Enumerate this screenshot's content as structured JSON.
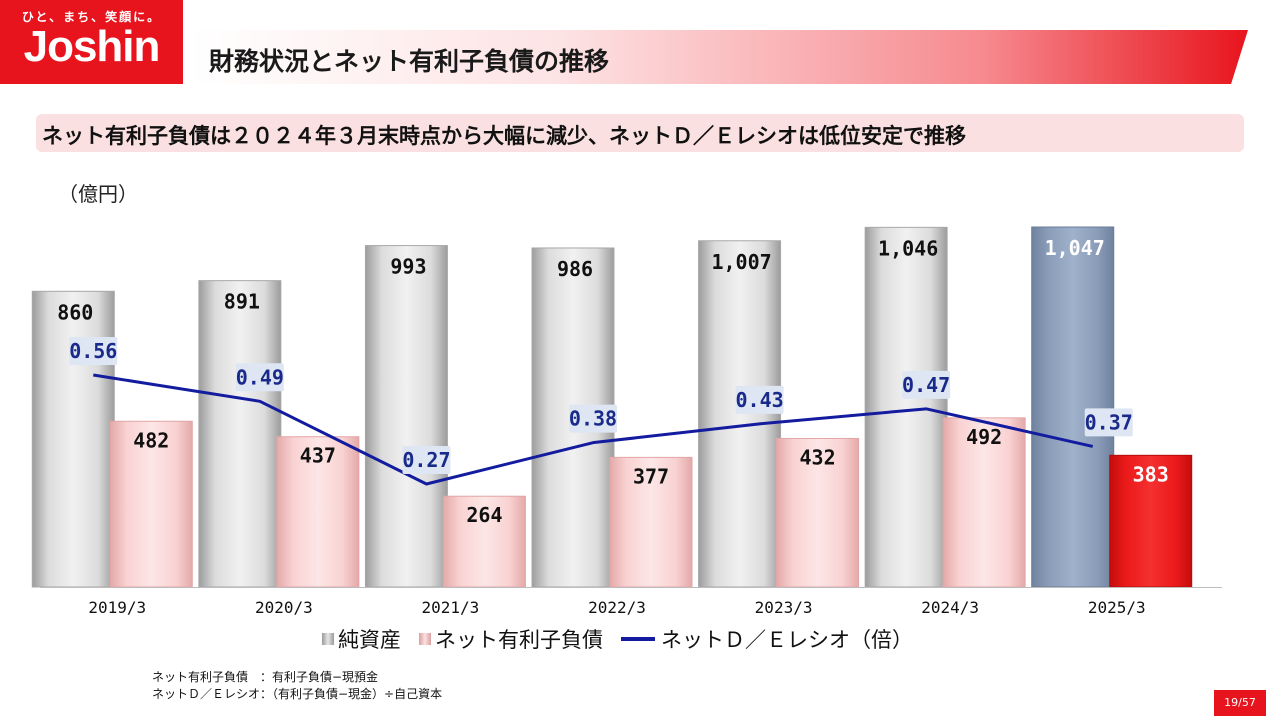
{
  "header": {
    "logo_tagline": "ひと、まち、笑顔に。",
    "logo_name": "Joshin",
    "title": "財務状況とネット有利子負債の推移"
  },
  "subtitle": "ネット有利子負債は２０２４年３月末時点から大幅に減少、ネットＤ／Ｅレシオは低位安定で推移",
  "notes": [
    "ネット有利子負債　：有利子負債−現預金",
    "ネットＤ／Ｅレシオ：（有利子負債−現金）÷自己資本"
  ],
  "page_number": "19/57",
  "colors": {
    "brand_red": "#e8141d",
    "net_assets": "#d9d9d9",
    "net_assets_latest": "#8ea0bd",
    "net_debt": "#fbd7d7",
    "net_debt_latest": "#ee1c1c",
    "ratio_line": "#131c9e"
  },
  "chart_data": {
    "type": "bar",
    "unit_label": "（億円）",
    "categories": [
      "2019/3",
      "2020/3",
      "2021/3",
      "2022/3",
      "2023/3",
      "2024/3",
      "2025/3"
    ],
    "ylim": [
      0,
      1100
    ],
    "series": [
      {
        "name": "純資産",
        "type": "bar",
        "values": [
          860,
          891,
          993,
          986,
          1007,
          1046,
          1047
        ],
        "labels": [
          "860",
          "891",
          "993",
          "986",
          "1,007",
          "1,046",
          "1,047"
        ]
      },
      {
        "name": "ネット有利子負債",
        "type": "bar",
        "values": [
          482,
          437,
          264,
          377,
          432,
          492,
          383
        ],
        "labels": [
          "482",
          "437",
          "264",
          "377",
          "432",
          "492",
          "383"
        ]
      },
      {
        "name": "ネットＤ／Ｅレシオ（倍）",
        "type": "line",
        "values": [
          0.56,
          0.49,
          0.27,
          0.38,
          0.43,
          0.47,
          0.37
        ],
        "labels": [
          "0.56",
          "0.49",
          "0.27",
          "0.38",
          "0.43",
          "0.47",
          "0.37"
        ]
      }
    ]
  }
}
